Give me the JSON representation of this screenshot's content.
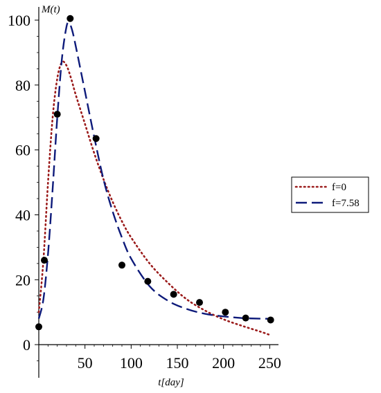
{
  "chart_data": {
    "type": "line",
    "xlabel": "t[day]",
    "ylabel": "M(t)",
    "xlim": [
      0,
      255
    ],
    "ylim": [
      -10,
      103
    ],
    "x_ticks": [
      50,
      100,
      150,
      200,
      250
    ],
    "y_ticks": [
      0,
      20,
      40,
      60,
      80,
      100
    ],
    "grid": false,
    "legend_position": "right",
    "observed": {
      "x": [
        0,
        6,
        20,
        34,
        62,
        90,
        118,
        146,
        174,
        202,
        224,
        251
      ],
      "y": [
        5.5,
        26,
        71,
        100.5,
        63.5,
        24.5,
        19.5,
        15.5,
        13,
        10,
        8.2,
        7.6
      ]
    },
    "series": [
      {
        "name": "f=0",
        "color": "#9b1b1b",
        "style": "dotted",
        "x": [
          0,
          5,
          10,
          15,
          20,
          25,
          30,
          35,
          40,
          50,
          60,
          70,
          80,
          90,
          100,
          120,
          140,
          160,
          180,
          200,
          220,
          240,
          250
        ],
        "y": [
          10,
          26,
          50,
          70,
          82,
          87,
          86,
          82,
          77,
          68,
          59,
          51,
          44,
          38,
          33,
          25,
          19,
          14,
          10.5,
          7.8,
          5.8,
          4,
          3
        ]
      },
      {
        "name": "f=7.58",
        "color": "#0d1a7a",
        "style": "dashed",
        "x": [
          0,
          5,
          10,
          15,
          20,
          25,
          30,
          33,
          36,
          40,
          50,
          60,
          70,
          80,
          90,
          100,
          120,
          140,
          160,
          180,
          200,
          220,
          240,
          250
        ],
        "y": [
          8,
          14,
          28,
          48,
          70,
          88,
          98,
          99,
          97,
          92,
          78,
          64,
          51,
          41,
          33,
          26.5,
          18,
          13.5,
          11,
          9.5,
          8.7,
          8.2,
          8,
          8
        ]
      }
    ]
  }
}
